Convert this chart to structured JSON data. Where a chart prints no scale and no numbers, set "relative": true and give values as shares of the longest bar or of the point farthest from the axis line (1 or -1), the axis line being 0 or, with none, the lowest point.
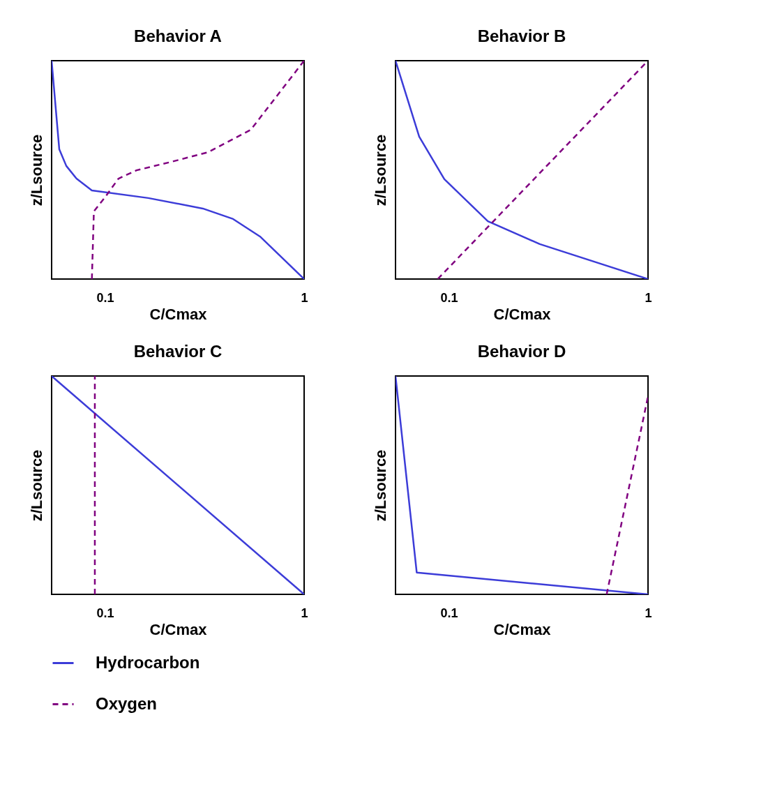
{
  "chart_data": [
    {
      "type": "line",
      "title": "Behavior A",
      "xlabel": "C/Cmax",
      "ylabel": "z/Lsource",
      "relative": true,
      "log": "x",
      "xlim": [
        0.054,
        1
      ],
      "xticks": [
        0.1,
        1
      ],
      "grid": false,
      "legend": "bottom",
      "series": [
        {
          "name": "Hydrocarbon",
          "color": "#3c3cd8",
          "line_style": "solid",
          "x": [
            0.054,
            0.059,
            0.064,
            0.072,
            0.086,
            0.165,
            0.31,
            0.44,
            0.6,
            1
          ],
          "values": [
            1,
            0.594,
            0.518,
            0.46,
            0.406,
            0.371,
            0.323,
            0.275,
            0.195,
            0
          ]
        },
        {
          "name": "Oxygen",
          "color": "#800080",
          "line_style": "dashed",
          "x": [
            0.086,
            0.088,
            0.1,
            0.117,
            0.144,
            0.216,
            0.33,
            0.54,
            1
          ],
          "values": [
            0,
            0.31,
            0.374,
            0.46,
            0.498,
            0.537,
            0.581,
            0.684,
            1
          ]
        }
      ]
    },
    {
      "type": "line",
      "title": "Behavior B",
      "xlabel": "C/Cmax",
      "ylabel": "z/Lsource",
      "relative": true,
      "log": "x",
      "xlim": [
        0.054,
        1
      ],
      "xticks": [
        0.1,
        1
      ],
      "grid": false,
      "legend": false,
      "series": [
        {
          "name": "Hydrocarbon",
          "color": "#3c3cd8",
          "line_style": "solid",
          "x": [
            0.054,
            0.071,
            0.095,
            0.157,
            0.286,
            1
          ],
          "values": [
            1,
            0.652,
            0.457,
            0.265,
            0.16,
            0
          ]
        },
        {
          "name": "Oxygen",
          "color": "#800080",
          "line_style": "dashed",
          "x": [
            0.088,
            1
          ],
          "values": [
            0,
            1
          ]
        }
      ]
    },
    {
      "type": "line",
      "title": "Behavior C",
      "xlabel": "C/Cmax",
      "ylabel": "z/Lsource",
      "relative": true,
      "log": "x",
      "xlim": [
        0.054,
        1
      ],
      "xticks": [
        0.1,
        1
      ],
      "grid": false,
      "legend": false,
      "series": [
        {
          "name": "Hydrocarbon",
          "color": "#3c3cd8",
          "line_style": "solid",
          "x": [
            0.054,
            1
          ],
          "values": [
            1,
            0
          ]
        },
        {
          "name": "Oxygen",
          "color": "#800080",
          "line_style": "dashed",
          "x": [
            0.089,
            0.089
          ],
          "values": [
            0,
            1
          ]
        }
      ]
    },
    {
      "type": "line",
      "title": "Behavior D",
      "xlabel": "C/Cmax",
      "ylabel": "z/Lsource",
      "relative": true,
      "log": "x",
      "xlim": [
        0.054,
        1
      ],
      "xticks": [
        0.1,
        1
      ],
      "grid": false,
      "legend": false,
      "series": [
        {
          "name": "Hydrocarbon",
          "color": "#3c3cd8",
          "line_style": "solid",
          "x": [
            0.054,
            0.069,
            1
          ],
          "values": [
            1,
            0.1,
            0
          ]
        },
        {
          "name": "Oxygen",
          "color": "#800080",
          "line_style": "dashed",
          "x": [
            0.62,
            1
          ],
          "values": [
            0,
            0.907
          ]
        }
      ]
    }
  ]
}
